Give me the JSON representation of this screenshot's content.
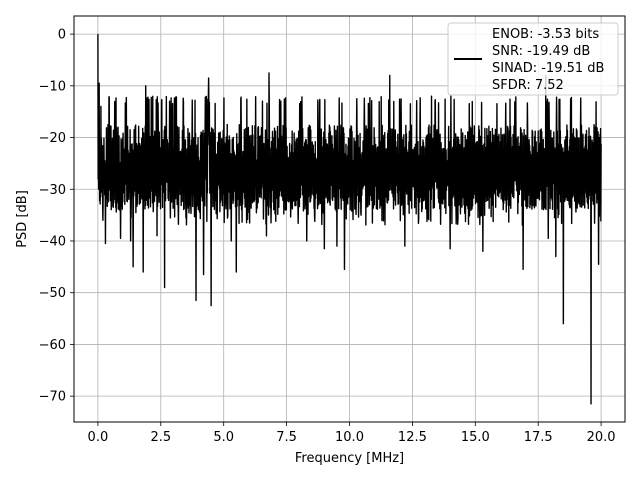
{
  "chart_data": {
    "type": "line",
    "title": "",
    "xlabel": "Frequency [MHz]",
    "ylabel": "PSD [dB]",
    "xlim": [
      -0.95,
      20.95
    ],
    "ylim": [
      -75,
      3.5
    ],
    "xticks": [
      0.0,
      2.5,
      5.0,
      7.5,
      10.0,
      12.5,
      15.0,
      17.5,
      20.0
    ],
    "xtick_labels": [
      "0.0",
      "2.5",
      "5.0",
      "7.5",
      "10.0",
      "12.5",
      "15.0",
      "17.5",
      "20.0"
    ],
    "yticks": [
      0,
      -10,
      -20,
      -30,
      -40,
      -50,
      -60,
      -70
    ],
    "ytick_labels": [
      "0",
      "−10",
      "−20",
      "−30",
      "−40",
      "−50",
      "−60",
      "−70"
    ],
    "grid": true,
    "legend_position": "top-right",
    "series": [
      {
        "color": "#000000",
        "band_upper": -13.5,
        "band_lower": -34,
        "dc_peak": 0,
        "f_max": 20,
        "dips": [
          {
            "x": 0.2,
            "y": -36
          },
          {
            "x": 0.3,
            "y": -40.5
          },
          {
            "x": 0.9,
            "y": -39.5
          },
          {
            "x": 1.3,
            "y": -40
          },
          {
            "x": 1.4,
            "y": -45
          },
          {
            "x": 1.8,
            "y": -46
          },
          {
            "x": 2.35,
            "y": -39
          },
          {
            "x": 2.65,
            "y": -49
          },
          {
            "x": 3.9,
            "y": -51.5
          },
          {
            "x": 4.2,
            "y": -46.5
          },
          {
            "x": 4.5,
            "y": -52.5
          },
          {
            "x": 5.3,
            "y": -40
          },
          {
            "x": 5.5,
            "y": -46
          },
          {
            "x": 6.7,
            "y": -39
          },
          {
            "x": 8.3,
            "y": -40
          },
          {
            "x": 9.0,
            "y": -41.5
          },
          {
            "x": 9.5,
            "y": -41
          },
          {
            "x": 9.8,
            "y": -45.5
          },
          {
            "x": 12.2,
            "y": -41
          },
          {
            "x": 14.0,
            "y": -41.5
          },
          {
            "x": 15.3,
            "y": -42
          },
          {
            "x": 16.9,
            "y": -45.5
          },
          {
            "x": 17.9,
            "y": -39.5
          },
          {
            "x": 18.2,
            "y": -43
          },
          {
            "x": 18.5,
            "y": -56
          },
          {
            "x": 19.6,
            "y": -71.5
          },
          {
            "x": 19.9,
            "y": -44.5
          }
        ],
        "spikes": [
          {
            "x": 0.05,
            "y": -9.5
          },
          {
            "x": 0.12,
            "y": -14
          },
          {
            "x": 1.9,
            "y": -10
          },
          {
            "x": 4.4,
            "y": -8.5
          },
          {
            "x": 6.8,
            "y": -7.5
          },
          {
            "x": 11.6,
            "y": -8
          },
          {
            "x": 17.8,
            "y": -8
          }
        ]
      }
    ],
    "legend": {
      "lines": [
        "ENOB: -3.53 bits",
        "SNR: -19.49 dB",
        "SINAD: -19.51 dB",
        "SFDR: 7.52"
      ]
    }
  }
}
